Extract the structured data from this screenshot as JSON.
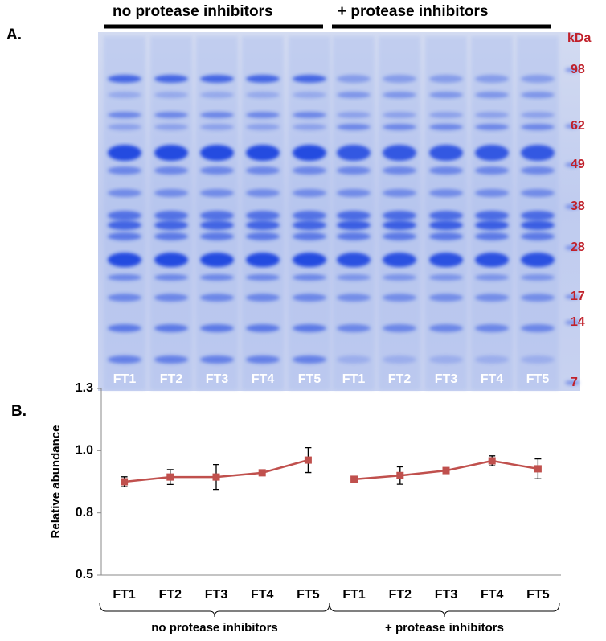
{
  "gel": {
    "panel_label": "A.",
    "group_labels": [
      "no protease inhibitors",
      "+ protease inhibitors"
    ],
    "lane_labels": [
      "FT1",
      "FT2",
      "FT3",
      "FT4",
      "FT5",
      "FT1",
      "FT2",
      "FT3",
      "FT4",
      "FT5"
    ],
    "marker_unit": "kDa",
    "marker_labels": [
      "98",
      "62",
      "49",
      "38",
      "28",
      "17",
      "14",
      "7"
    ]
  },
  "chart_data": {
    "type": "line",
    "panel_label": "B.",
    "y_label": "Relative abundance",
    "categories": [
      "FT1",
      "FT2",
      "FT3",
      "FT4",
      "FT5",
      "FT1",
      "FT2",
      "FT3",
      "FT4",
      "FT5"
    ],
    "series": [
      {
        "name": "no protease inhibitors",
        "color": "#c0504d",
        "values": [
          0.875,
          0.894,
          0.894,
          0.911,
          0.962,
          null,
          null,
          null,
          null,
          null
        ],
        "errors": [
          0.02,
          0.03,
          0.05,
          0.01,
          0.05,
          null,
          null,
          null,
          null,
          null
        ]
      },
      {
        "name": "+ protease inhibitors",
        "color": "#c0504d",
        "values": [
          null,
          null,
          null,
          null,
          null,
          0.885,
          0.9,
          0.92,
          0.959,
          0.927
        ],
        "errors": [
          null,
          null,
          null,
          null,
          null,
          0.005,
          0.035,
          0.01,
          0.02,
          0.04
        ]
      }
    ],
    "ylim": [
      0.5,
      1.25
    ],
    "yticks": [
      0.5,
      {
        "value": 0.75,
        "label": "0.8"
      },
      {
        "value": 1,
        "label": "1.0"
      },
      {
        "value": 1.25,
        "label": "1.3"
      }
    ]
  }
}
